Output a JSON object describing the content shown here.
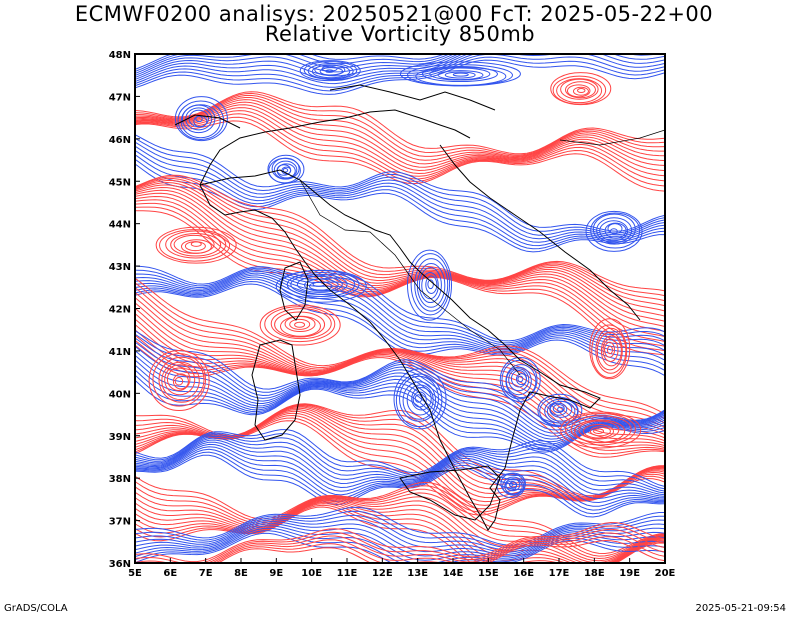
{
  "title_line1": "ECMWF0200 analisys: 20250521@00 FcT: 2025-05-22+00",
  "title_line2": "Relative Vorticity 850mb",
  "footer_left": "GrADS/COLA",
  "footer_right": "2025-05-21-09:54",
  "map": {
    "lon_range": [
      5,
      20
    ],
    "lat_range": [
      36,
      48
    ],
    "lon_ticks": [
      "5E",
      "6E",
      "7E",
      "8E",
      "9E",
      "10E",
      "11E",
      "12E",
      "13E",
      "14E",
      "15E",
      "16E",
      "17E",
      "18E",
      "19E",
      "20E"
    ],
    "lat_ticks": [
      "36N",
      "37N",
      "38N",
      "39N",
      "40N",
      "41N",
      "42N",
      "43N",
      "44N",
      "45N",
      "46N",
      "47N",
      "48N"
    ],
    "positive_color": "#ff4444",
    "negative_color": "#3355ee",
    "border_color": "#000000"
  }
}
